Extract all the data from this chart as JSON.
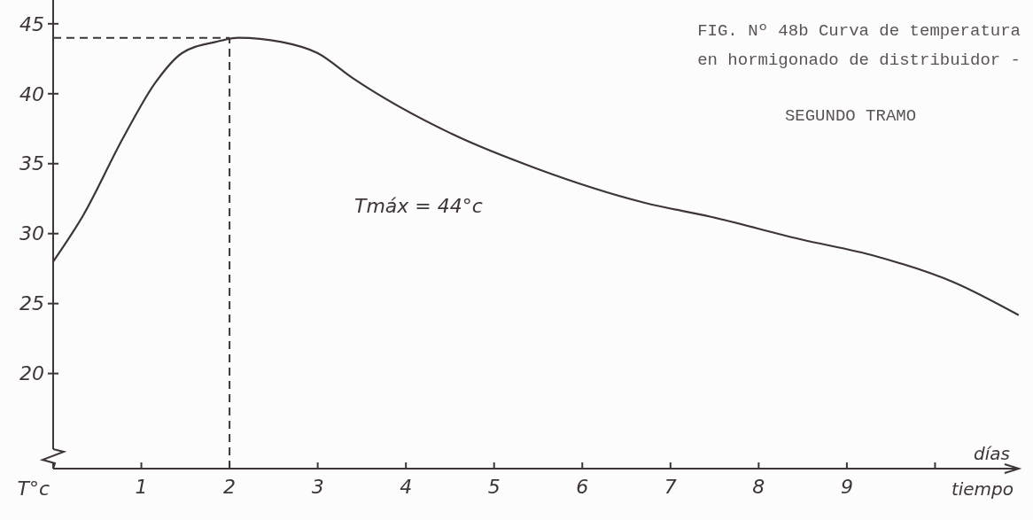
{
  "chart_data": {
    "type": "line",
    "title": "FIG. Nº 48b Curva de temperatura en hormigonado de distribuidor -",
    "subtitle": "SEGUNDO TRAMO",
    "xlabel": "tiempo",
    "ylabel": "T°c",
    "annotations": [
      "días",
      "Tmáx = 44°c"
    ],
    "x": [
      0,
      0.34,
      0.79,
      1.16,
      1.46,
      1.84,
      2.1,
      2.59,
      3.0,
      3.4,
      4.53,
      5.46,
      6.71,
      7.46,
      8.47,
      9.32,
      10.22,
      10.94
    ],
    "series": [
      {
        "color": "#3d3539",
        "values": [
          28,
          31.3,
          36.8,
          40.8,
          42.9,
          43.7,
          44,
          43.7,
          42.9,
          41.1,
          37.1,
          34.7,
          32.2,
          31.2,
          29.6,
          28.4,
          26.5,
          24.2
        ]
      }
    ],
    "xlim": [
      0,
      10.95
    ],
    "xticks": [
      {
        "value": 0,
        "label": null
      },
      1,
      2,
      3,
      4,
      5,
      6,
      7,
      8,
      9,
      {
        "value": 10,
        "label": null
      }
    ],
    "ylim": [
      13.2,
      46.7
    ],
    "yticks": [
      20,
      25,
      30,
      35,
      40,
      45
    ],
    "ref_lines": [
      {
        "axis": "y",
        "value": 44,
        "line_style": "dashed"
      },
      {
        "axis": "x",
        "value": 2,
        "line_style": "dashed"
      }
    ],
    "grid": false,
    "marker": "none",
    "line_style": "solid"
  }
}
